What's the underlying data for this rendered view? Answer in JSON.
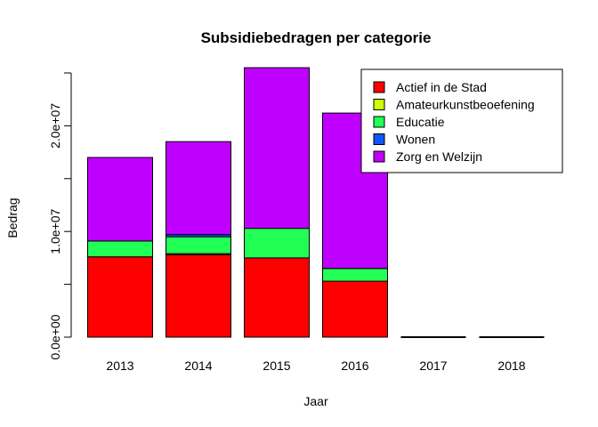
{
  "chart_data": {
    "type": "bar",
    "stacked": true,
    "title": "Subsidiebedragen per categorie",
    "xlabel": "Jaar",
    "ylabel": "Bedrag",
    "categories": [
      "2013",
      "2014",
      "2015",
      "2016",
      "2017",
      "2018"
    ],
    "ylim": [
      0,
      25000000
    ],
    "yticks": [
      0,
      10000000,
      20000000
    ],
    "ytick_labels": [
      "0.0e+00",
      "1.0e+07",
      "2.0e+07"
    ],
    "grid": false,
    "legend_position": "top-right",
    "series": [
      {
        "name": "Actief in de Stad",
        "color": "#ff0000",
        "values": [
          7600000,
          7800000,
          7500000,
          5300000,
          0,
          0
        ]
      },
      {
        "name": "Amateurkunstbeoefening",
        "color": "#ccff00",
        "values": [
          0,
          100000,
          0,
          0,
          0,
          0
        ]
      },
      {
        "name": "Educatie",
        "color": "#22ff55",
        "values": [
          1500000,
          1600000,
          2800000,
          1200000,
          0,
          0
        ]
      },
      {
        "name": "Wonen",
        "color": "#1155ff",
        "values": [
          0,
          200000,
          0,
          0,
          0,
          0
        ]
      },
      {
        "name": "Zorg en Welzijn",
        "color": "#c000ff",
        "values": [
          7900000,
          8800000,
          15200000,
          14700000,
          0,
          0
        ]
      }
    ]
  }
}
